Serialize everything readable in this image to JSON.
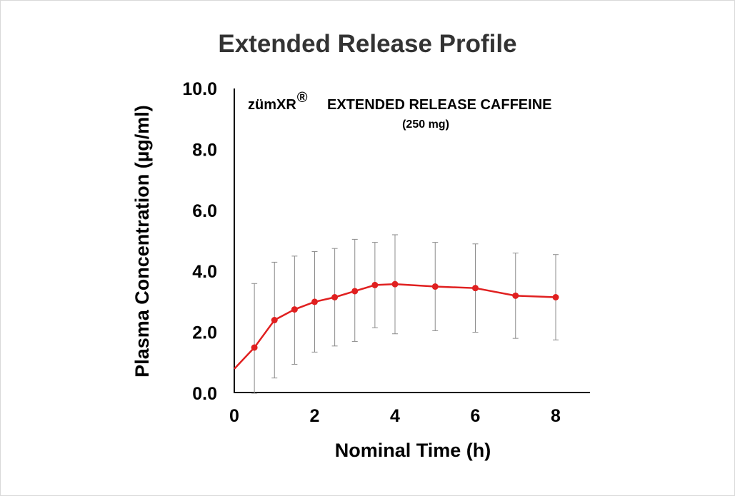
{
  "chart_data": {
    "type": "line",
    "title": "Extended Release Profile",
    "xlabel": "Nominal Time (h)",
    "ylabel": "Plasma Concentration (µg/ml)",
    "xlim": [
      0,
      8.5
    ],
    "ylim": [
      0,
      10
    ],
    "x_ticks": [
      "0",
      "2",
      "4",
      "6",
      "8"
    ],
    "x_tick_values": [
      0,
      2,
      4,
      6,
      8
    ],
    "y_ticks": [
      "0.0",
      "2.0",
      "4.0",
      "6.0",
      "8.0",
      "10.0"
    ],
    "y_tick_values": [
      0,
      2,
      4,
      6,
      8,
      10
    ],
    "annotation": {
      "brand": "zümXR",
      "registered_mark": "®",
      "product": "EXTENDED RELEASE CAFFEINE",
      "dose": "(250 mg)"
    },
    "color": "#e02020",
    "series": [
      {
        "x": [
          0,
          0.5,
          1,
          1.5,
          2,
          2.5,
          3,
          3.5,
          4,
          5,
          6,
          7,
          8
        ],
        "values": [
          0.8,
          1.5,
          2.4,
          2.75,
          3.0,
          3.15,
          3.35,
          3.55,
          3.58,
          3.5,
          3.45,
          3.2,
          3.15
        ],
        "error_low": [
          null,
          0.0,
          0.5,
          0.95,
          1.35,
          1.55,
          1.7,
          2.15,
          1.95,
          2.05,
          2.0,
          1.8,
          1.75
        ],
        "error_high": [
          null,
          3.6,
          4.3,
          4.5,
          4.65,
          4.75,
          5.05,
          4.95,
          5.2,
          4.95,
          4.9,
          4.6,
          4.55
        ]
      }
    ]
  }
}
